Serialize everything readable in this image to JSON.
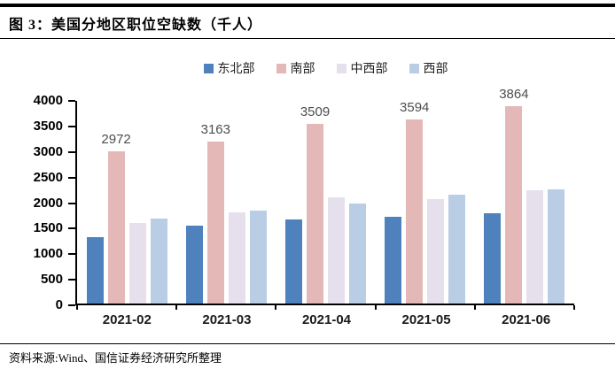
{
  "header": {
    "title": "图 3：美国分地区职位空缺数（千人）"
  },
  "footer": {
    "source": "资料来源:Wind、国信证券经济研究所整理"
  },
  "chart_data": {
    "type": "bar",
    "title": "美国分地区职位空缺数（千人）",
    "categories": [
      "2021-02",
      "2021-03",
      "2021-04",
      "2021-05",
      "2021-06"
    ],
    "series": [
      {
        "name": "东北部",
        "color": "#4F81BD",
        "values": [
          1300,
          1520,
          1640,
          1690,
          1760
        ],
        "data_labels": false
      },
      {
        "name": "南部",
        "color": "#E5B8B8",
        "values": [
          2972,
          3163,
          3509,
          3594,
          3864
        ],
        "data_labels": true
      },
      {
        "name": "中西部",
        "color": "#E5E0EC",
        "values": [
          1580,
          1780,
          2070,
          2050,
          2210
        ],
        "data_labels": false
      },
      {
        "name": "西部",
        "color": "#B9CDE4",
        "values": [
          1660,
          1810,
          1960,
          2130,
          2240
        ],
        "data_labels": false
      }
    ],
    "ylim": [
      0,
      4000
    ],
    "ytick_step": 500,
    "legend_position": "top",
    "grid": false,
    "axis_color": "#000000",
    "data_label_color": "#4d4d4d"
  }
}
